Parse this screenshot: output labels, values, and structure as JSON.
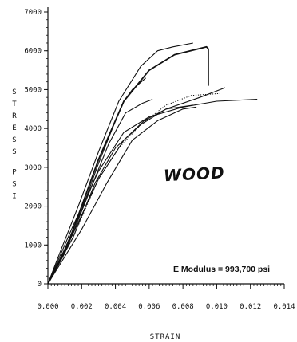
{
  "chart_data": {
    "type": "line",
    "title": "",
    "xlabel": "STRAIN",
    "ylabel": "STRESS PSI",
    "xlim": [
      0,
      0.014
    ],
    "ylim": [
      0,
      7000
    ],
    "x_ticks": [
      "0.000",
      "0.002",
      "0.004",
      "0.006",
      "0.008",
      "0.010",
      "0.012",
      "0.014"
    ],
    "x_tick_values": [
      0,
      0.002,
      0.004,
      0.006,
      0.008,
      0.01,
      0.012,
      0.014
    ],
    "y_ticks": [
      "0",
      "1000",
      "2000",
      "3000",
      "4000",
      "5000",
      "6000",
      "7000"
    ],
    "y_tick_values": [
      0,
      1000,
      2000,
      3000,
      4000,
      5000,
      6000,
      7000
    ],
    "grid": false,
    "series": [
      {
        "style": "solid",
        "points": [
          [
            0,
            0
          ],
          [
            0.0008,
            900
          ],
          [
            0.0018,
            2000
          ],
          [
            0.003,
            3400
          ],
          [
            0.0042,
            4700
          ],
          [
            0.0055,
            5600
          ],
          [
            0.0065,
            6000
          ],
          [
            0.0074,
            6100
          ],
          [
            0.0086,
            6200
          ]
        ]
      },
      {
        "style": "solid",
        "points": [
          [
            0,
            0
          ],
          [
            0.001,
            800
          ],
          [
            0.002,
            2000
          ],
          [
            0.003,
            3200
          ],
          [
            0.0045,
            4700
          ],
          [
            0.006,
            5500
          ],
          [
            0.0075,
            5900
          ],
          [
            0.0094,
            6100
          ],
          [
            0.0095,
            6050
          ],
          [
            0.0095,
            5100
          ]
        ]
      },
      {
        "style": "solid",
        "points": [
          [
            0,
            0
          ],
          [
            0.001,
            900
          ],
          [
            0.002,
            1900
          ],
          [
            0.003,
            3100
          ],
          [
            0.004,
            4200
          ],
          [
            0.0045,
            4700
          ],
          [
            0.005,
            5000
          ],
          [
            0.0058,
            5300
          ]
        ]
      },
      {
        "style": "solid",
        "points": [
          [
            0,
            0
          ],
          [
            0.0012,
            1000
          ],
          [
            0.0024,
            2300
          ],
          [
            0.0036,
            3600
          ],
          [
            0.0046,
            4400
          ],
          [
            0.0056,
            4650
          ],
          [
            0.0062,
            4750
          ]
        ]
      },
      {
        "style": "solid",
        "points": [
          [
            0,
            0
          ],
          [
            0.0015,
            1500
          ],
          [
            0.003,
            2900
          ],
          [
            0.0045,
            3900
          ],
          [
            0.006,
            4300
          ],
          [
            0.008,
            4550
          ],
          [
            0.01,
            4700
          ],
          [
            0.0124,
            4750
          ]
        ]
      },
      {
        "style": "solid",
        "points": [
          [
            0,
            0
          ],
          [
            0.0015,
            1300
          ],
          [
            0.003,
            2700
          ],
          [
            0.0045,
            3700
          ],
          [
            0.0057,
            4200
          ],
          [
            0.007,
            4500
          ],
          [
            0.0086,
            4600
          ]
        ]
      },
      {
        "style": "solid",
        "points": [
          [
            0,
            0
          ],
          [
            0.0015,
            1200
          ],
          [
            0.0028,
            2600
          ],
          [
            0.004,
            3500
          ],
          [
            0.0055,
            4100
          ],
          [
            0.007,
            4500
          ],
          [
            0.009,
            4800
          ],
          [
            0.0105,
            5050
          ]
        ]
      },
      {
        "style": "solid",
        "points": [
          [
            0,
            0
          ],
          [
            0.002,
            1400
          ],
          [
            0.0035,
            2600
          ],
          [
            0.005,
            3700
          ],
          [
            0.0065,
            4200
          ],
          [
            0.008,
            4500
          ],
          [
            0.0088,
            4550
          ]
        ]
      },
      {
        "style": "dotted",
        "points": [
          [
            0,
            0
          ],
          [
            0.0015,
            1200
          ],
          [
            0.003,
            2700
          ],
          [
            0.0042,
            3500
          ],
          [
            0.0055,
            4100
          ],
          [
            0.007,
            4600
          ],
          [
            0.0085,
            4850
          ],
          [
            0.0102,
            4900
          ]
        ]
      }
    ],
    "annotations": [
      {
        "text": "E Modulus = 993,700 psi"
      },
      {
        "text": "WOOD",
        "style": "handwritten"
      }
    ]
  }
}
